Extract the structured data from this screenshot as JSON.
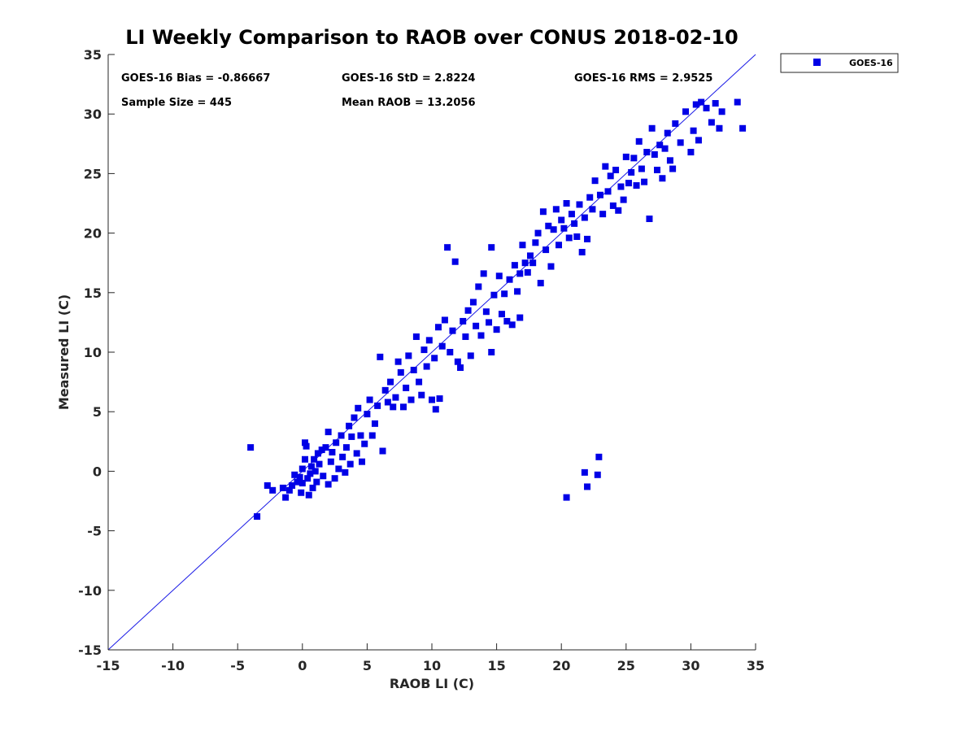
{
  "chart_data": {
    "type": "scatter",
    "title": "LI Weekly Comparison to RAOB over CONUS 2018-02-10",
    "xlabel": "RAOB LI (C)",
    "ylabel": "Measured LI (C)",
    "xlim": [
      -15,
      35
    ],
    "ylim": [
      -15,
      35
    ],
    "xticks": [
      -15,
      -10,
      -5,
      0,
      5,
      10,
      15,
      20,
      25,
      30,
      35
    ],
    "yticks": [
      -15,
      -10,
      -5,
      0,
      5,
      10,
      15,
      20,
      25,
      30,
      35
    ],
    "grid": false,
    "reference_line": "y = x",
    "legend_position": "outside-top-right",
    "annotations": {
      "bias": "GOES-16 Bias = -0.86667",
      "std": "GOES-16 StD = 2.8224",
      "rms": "GOES-16 RMS = 2.9525",
      "sample_size": "Sample Size = 445",
      "mean_raob": "Mean RAOB = 13.2056"
    },
    "colors": {
      "marker": "#0000e6",
      "line": "#1a1ae6",
      "axis": "#262626"
    },
    "series": [
      {
        "name": "GOES-16",
        "marker": "square",
        "points": [
          [
            -4.0,
            2.0
          ],
          [
            -3.5,
            -3.8
          ],
          [
            -2.7,
            -1.2
          ],
          [
            -2.3,
            -1.6
          ],
          [
            -1.5,
            -1.4
          ],
          [
            -1.3,
            -2.2
          ],
          [
            -1.0,
            -1.6
          ],
          [
            -0.8,
            -1.2
          ],
          [
            -0.6,
            -0.3
          ],
          [
            -0.4,
            -0.9
          ],
          [
            -0.2,
            -0.5
          ],
          [
            0.0,
            0.2
          ],
          [
            0.0,
            -1.0
          ],
          [
            -0.1,
            -1.8
          ],
          [
            0.2,
            1.0
          ],
          [
            0.2,
            2.4
          ],
          [
            0.3,
            2.1
          ],
          [
            0.4,
            -0.6
          ],
          [
            0.5,
            -2.0
          ],
          [
            0.6,
            -0.2
          ],
          [
            0.7,
            0.4
          ],
          [
            0.8,
            -1.4
          ],
          [
            0.9,
            1.0
          ],
          [
            1.0,
            0.0
          ],
          [
            1.1,
            -0.9
          ],
          [
            1.2,
            1.5
          ],
          [
            1.3,
            0.6
          ],
          [
            1.5,
            1.8
          ],
          [
            1.6,
            -0.4
          ],
          [
            1.8,
            2.0
          ],
          [
            2.0,
            -1.1
          ],
          [
            2.0,
            3.3
          ],
          [
            2.2,
            0.8
          ],
          [
            2.3,
            1.6
          ],
          [
            2.5,
            -0.6
          ],
          [
            2.6,
            2.4
          ],
          [
            2.8,
            0.2
          ],
          [
            3.0,
            3.0
          ],
          [
            3.1,
            1.2
          ],
          [
            3.3,
            -0.1
          ],
          [
            3.4,
            2.0
          ],
          [
            3.6,
            3.8
          ],
          [
            3.7,
            0.6
          ],
          [
            3.8,
            2.9
          ],
          [
            4.0,
            4.5
          ],
          [
            4.2,
            1.5
          ],
          [
            4.3,
            5.3
          ],
          [
            4.5,
            3.0
          ],
          [
            4.6,
            0.8
          ],
          [
            4.8,
            2.3
          ],
          [
            5.0,
            4.8
          ],
          [
            5.2,
            6.0
          ],
          [
            5.4,
            3.0
          ],
          [
            5.6,
            4.0
          ],
          [
            5.8,
            5.5
          ],
          [
            6.0,
            9.6
          ],
          [
            6.2,
            1.7
          ],
          [
            6.4,
            6.8
          ],
          [
            6.6,
            5.8
          ],
          [
            6.8,
            7.5
          ],
          [
            7.0,
            5.4
          ],
          [
            7.2,
            6.2
          ],
          [
            7.4,
            9.2
          ],
          [
            7.6,
            8.3
          ],
          [
            7.8,
            5.4
          ],
          [
            8.0,
            7.0
          ],
          [
            8.2,
            9.7
          ],
          [
            8.4,
            6.0
          ],
          [
            8.6,
            8.5
          ],
          [
            8.8,
            11.3
          ],
          [
            9.0,
            7.5
          ],
          [
            9.2,
            6.4
          ],
          [
            9.4,
            10.2
          ],
          [
            9.6,
            8.8
          ],
          [
            9.8,
            11.0
          ],
          [
            10.0,
            6.0
          ],
          [
            10.2,
            9.5
          ],
          [
            10.3,
            5.2
          ],
          [
            10.5,
            12.1
          ],
          [
            10.6,
            6.1
          ],
          [
            10.8,
            10.5
          ],
          [
            11.0,
            12.7
          ],
          [
            11.2,
            18.8
          ],
          [
            11.4,
            10.0
          ],
          [
            11.6,
            11.8
          ],
          [
            11.8,
            17.6
          ],
          [
            12.0,
            9.2
          ],
          [
            12.2,
            8.7
          ],
          [
            12.4,
            12.6
          ],
          [
            12.6,
            11.3
          ],
          [
            12.8,
            13.5
          ],
          [
            13.0,
            9.7
          ],
          [
            13.2,
            14.2
          ],
          [
            13.4,
            12.2
          ],
          [
            13.6,
            15.5
          ],
          [
            13.8,
            11.4
          ],
          [
            14.0,
            16.6
          ],
          [
            14.2,
            13.4
          ],
          [
            14.4,
            12.5
          ],
          [
            14.6,
            10.0
          ],
          [
            14.6,
            18.8
          ],
          [
            14.8,
            14.8
          ],
          [
            15.0,
            11.9
          ],
          [
            15.2,
            16.4
          ],
          [
            15.4,
            13.2
          ],
          [
            15.6,
            14.9
          ],
          [
            15.8,
            12.6
          ],
          [
            16.0,
            16.1
          ],
          [
            16.2,
            12.3
          ],
          [
            16.4,
            17.3
          ],
          [
            16.6,
            15.1
          ],
          [
            16.8,
            16.6
          ],
          [
            16.8,
            12.9
          ],
          [
            17.0,
            19.0
          ],
          [
            17.2,
            17.5
          ],
          [
            17.4,
            16.7
          ],
          [
            17.6,
            18.1
          ],
          [
            17.8,
            17.5
          ],
          [
            18.0,
            19.2
          ],
          [
            18.2,
            20.0
          ],
          [
            18.4,
            15.8
          ],
          [
            18.6,
            21.8
          ],
          [
            18.8,
            18.6
          ],
          [
            19.0,
            20.6
          ],
          [
            19.2,
            17.2
          ],
          [
            19.4,
            20.3
          ],
          [
            19.6,
            22.0
          ],
          [
            19.8,
            19.0
          ],
          [
            20.0,
            21.1
          ],
          [
            20.2,
            20.4
          ],
          [
            20.4,
            -2.2
          ],
          [
            20.4,
            22.5
          ],
          [
            20.6,
            19.6
          ],
          [
            20.8,
            21.6
          ],
          [
            21.0,
            20.8
          ],
          [
            21.2,
            19.7
          ],
          [
            21.4,
            22.4
          ],
          [
            21.6,
            18.4
          ],
          [
            21.8,
            -0.1
          ],
          [
            21.8,
            21.3
          ],
          [
            22.0,
            -1.3
          ],
          [
            22.0,
            19.5
          ],
          [
            22.2,
            23.0
          ],
          [
            22.4,
            22.0
          ],
          [
            22.6,
            24.4
          ],
          [
            22.8,
            -0.3
          ],
          [
            22.9,
            1.2
          ],
          [
            23.0,
            23.2
          ],
          [
            23.2,
            21.6
          ],
          [
            23.4,
            25.6
          ],
          [
            23.6,
            23.5
          ],
          [
            23.8,
            24.8
          ],
          [
            24.0,
            22.3
          ],
          [
            24.2,
            25.3
          ],
          [
            24.4,
            21.9
          ],
          [
            24.6,
            23.9
          ],
          [
            24.8,
            22.8
          ],
          [
            25.0,
            26.4
          ],
          [
            25.2,
            24.2
          ],
          [
            25.4,
            25.1
          ],
          [
            25.6,
            26.3
          ],
          [
            25.8,
            24.0
          ],
          [
            26.0,
            27.7
          ],
          [
            26.2,
            25.4
          ],
          [
            26.4,
            24.3
          ],
          [
            26.6,
            26.8
          ],
          [
            26.8,
            21.2
          ],
          [
            27.0,
            28.8
          ],
          [
            27.2,
            26.6
          ],
          [
            27.4,
            25.3
          ],
          [
            27.6,
            27.4
          ],
          [
            27.8,
            24.6
          ],
          [
            28.0,
            27.1
          ],
          [
            28.2,
            28.4
          ],
          [
            28.4,
            26.1
          ],
          [
            28.6,
            25.4
          ],
          [
            28.8,
            29.2
          ],
          [
            29.2,
            27.6
          ],
          [
            29.6,
            30.2
          ],
          [
            30.0,
            26.8
          ],
          [
            30.2,
            28.6
          ],
          [
            30.4,
            30.8
          ],
          [
            30.6,
            27.8
          ],
          [
            30.8,
            31.0
          ],
          [
            31.2,
            30.5
          ],
          [
            31.6,
            29.3
          ],
          [
            31.9,
            30.9
          ],
          [
            32.2,
            28.8
          ],
          [
            32.4,
            30.2
          ],
          [
            33.6,
            31.0
          ],
          [
            34.0,
            28.8
          ]
        ]
      }
    ]
  },
  "legend": {
    "label": "GOES-16"
  }
}
